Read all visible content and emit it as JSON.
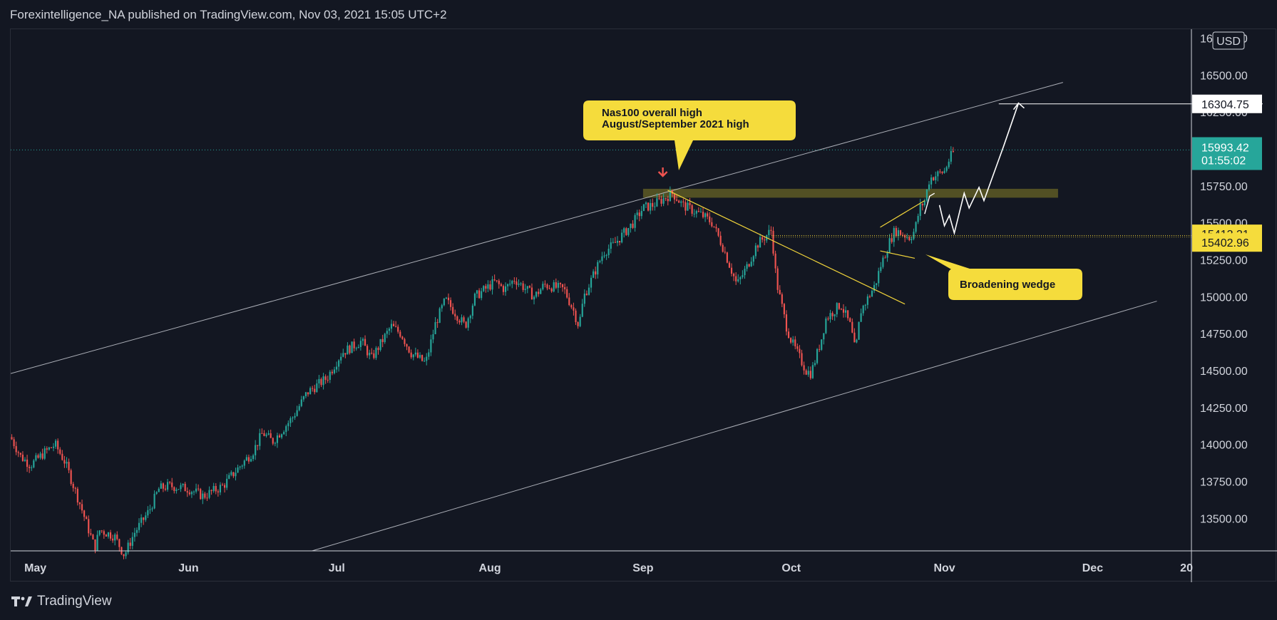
{
  "header": {
    "publisher_line": "Forexintelligence_NA published on TradingView.com, Nov 03, 2021 15:05 UTC+2"
  },
  "footer": {
    "brand": "TradingView",
    "logo_icon": "tradingview-logo-icon"
  },
  "colors": {
    "background": "#131722",
    "up_candle": "#26a69a",
    "down_candle": "#ef5350",
    "channel_line": "#d1d4dc",
    "trend_line": "#f0d33a",
    "callout_bg": "#f5dc3c",
    "zone_fill": "#5e5a24",
    "current_price_bg": "#26a69a",
    "projection": "#ffffff"
  },
  "chart_data": {
    "type": "candlestick",
    "instrument": "Nas100",
    "currency": "USD",
    "x_axis": {
      "labels": [
        "May",
        "Jun",
        "Jul",
        "Aug",
        "Sep",
        "Oct",
        "Nov",
        "Dec",
        "20"
      ],
      "range": [
        "2021-04-26",
        "2021-12-21"
      ]
    },
    "y_axis": {
      "ticks": [
        "13500.00",
        "13750.00",
        "14000.00",
        "14250.00",
        "14500.00",
        "14750.00",
        "15000.00",
        "15250.00",
        "15500.00",
        "15750.00",
        "16000.00",
        "16250.00",
        "16500.00",
        "16750.00"
      ],
      "range": [
        13280,
        16810
      ],
      "unit_label": "USD"
    },
    "price_path": [
      [
        "2021-04-26",
        14050
      ],
      [
        "2021-04-28",
        13920
      ],
      [
        "2021-04-30",
        13860
      ],
      [
        "2021-05-03",
        13950
      ],
      [
        "2021-05-05",
        14000
      ],
      [
        "2021-05-07",
        13880
      ],
      [
        "2021-05-10",
        13600
      ],
      [
        "2021-05-12",
        13400
      ],
      [
        "2021-05-13",
        13300
      ],
      [
        "2021-05-14",
        13420
      ],
      [
        "2021-05-17",
        13380
      ],
      [
        "2021-05-19",
        13250
      ],
      [
        "2021-05-21",
        13400
      ],
      [
        "2021-05-24",
        13550
      ],
      [
        "2021-05-26",
        13700
      ],
      [
        "2021-05-28",
        13720
      ],
      [
        "2021-06-01",
        13700
      ],
      [
        "2021-06-04",
        13650
      ],
      [
        "2021-06-08",
        13720
      ],
      [
        "2021-06-10",
        13800
      ],
      [
        "2021-06-14",
        13950
      ],
      [
        "2021-06-16",
        14080
      ],
      [
        "2021-06-18",
        14020
      ],
      [
        "2021-06-22",
        14180
      ],
      [
        "2021-06-25",
        14350
      ],
      [
        "2021-06-29",
        14450
      ],
      [
        "2021-07-02",
        14620
      ],
      [
        "2021-07-06",
        14700
      ],
      [
        "2021-07-08",
        14580
      ],
      [
        "2021-07-12",
        14800
      ],
      [
        "2021-07-14",
        14750
      ],
      [
        "2021-07-16",
        14620
      ],
      [
        "2021-07-19",
        14550
      ],
      [
        "2021-07-21",
        14820
      ],
      [
        "2021-07-23",
        14980
      ],
      [
        "2021-07-27",
        14800
      ],
      [
        "2021-07-29",
        15000
      ],
      [
        "2021-08-02",
        15100
      ],
      [
        "2021-08-04",
        15050
      ],
      [
        "2021-08-06",
        15120
      ],
      [
        "2021-08-10",
        15000
      ],
      [
        "2021-08-12",
        15080
      ],
      [
        "2021-08-16",
        15050
      ],
      [
        "2021-08-18",
        14900
      ],
      [
        "2021-08-19",
        14800
      ],
      [
        "2021-08-20",
        15000
      ],
      [
        "2021-08-24",
        15300
      ],
      [
        "2021-08-26",
        15350
      ],
      [
        "2021-08-30",
        15500
      ],
      [
        "2021-09-01",
        15600
      ],
      [
        "2021-09-03",
        15620
      ],
      [
        "2021-09-07",
        15700
      ],
      [
        "2021-09-09",
        15620
      ],
      [
        "2021-09-13",
        15550
      ],
      [
        "2021-09-15",
        15500
      ],
      [
        "2021-09-17",
        15350
      ],
      [
        "2021-09-20",
        15080
      ],
      [
        "2021-09-22",
        15200
      ],
      [
        "2021-09-24",
        15350
      ],
      [
        "2021-09-27",
        15450
      ],
      [
        "2021-09-28",
        15100
      ],
      [
        "2021-09-30",
        14800
      ],
      [
        "2021-10-01",
        14700
      ],
      [
        "2021-10-04",
        14500
      ],
      [
        "2021-10-05",
        14480
      ],
      [
        "2021-10-07",
        14700
      ],
      [
        "2021-10-08",
        14850
      ],
      [
        "2021-10-11",
        14950
      ],
      [
        "2021-10-13",
        14800
      ],
      [
        "2021-10-14",
        14620
      ],
      [
        "2021-10-15",
        14900
      ],
      [
        "2021-10-18",
        15080
      ],
      [
        "2021-10-19",
        15200
      ],
      [
        "2021-10-21",
        15380
      ],
      [
        "2021-10-22",
        15450
      ],
      [
        "2021-10-25",
        15400
      ],
      [
        "2021-10-26",
        15450
      ],
      [
        "2021-10-27",
        15600
      ],
      [
        "2021-10-28",
        15650
      ],
      [
        "2021-10-29",
        15800
      ],
      [
        "2021-11-01",
        15850
      ],
      [
        "2021-11-02",
        15930
      ],
      [
        "2021-11-03",
        15993
      ]
    ],
    "channel": {
      "upper": [
        [
          "2021-04-26",
          14480
        ],
        [
          "2021-11-25",
          16450
        ]
      ],
      "lower": [
        [
          "2021-06-26",
          13280
        ],
        [
          "2021-12-14",
          14970
        ]
      ]
    },
    "trend_lines": [
      {
        "from": [
          "2021-09-06",
          15720
        ],
        "to": [
          "2021-10-24",
          14950
        ]
      },
      {
        "from": [
          "2021-10-19",
          15470
        ],
        "to": [
          "2021-10-28",
          15650
        ]
      },
      {
        "from": [
          "2021-10-19",
          15310
        ],
        "to": [
          "2021-10-26",
          15260
        ]
      }
    ],
    "resistance_zone": {
      "from": "2021-09-01",
      "to": "2021-11-24",
      "low": 15670,
      "high": 15730
    },
    "projection_path": [
      [
        "2021-10-31",
        15620
      ],
      [
        "2021-11-01",
        15480
      ],
      [
        "2021-11-02",
        15550
      ],
      [
        "2021-11-03",
        15430
      ],
      [
        "2021-11-05",
        15700
      ],
      [
        "2021-11-06",
        15600
      ],
      [
        "2021-11-08",
        15740
      ],
      [
        "2021-11-09",
        15650
      ],
      [
        "2021-11-13",
        16020
      ],
      [
        "2021-11-16",
        16310
      ]
    ],
    "target_line": {
      "from": "2021-11-12",
      "price": 16304.75
    },
    "price_labels": {
      "target": "16304.75",
      "current": "15993.42",
      "countdown": "01:55:02",
      "level_1": "15413.31",
      "level_2": "15402.96"
    },
    "annotations": {
      "callout_high": [
        "Nas100 overall high",
        "August/September 2021 high"
      ],
      "callout_wedge": "Broadening wedge"
    }
  }
}
